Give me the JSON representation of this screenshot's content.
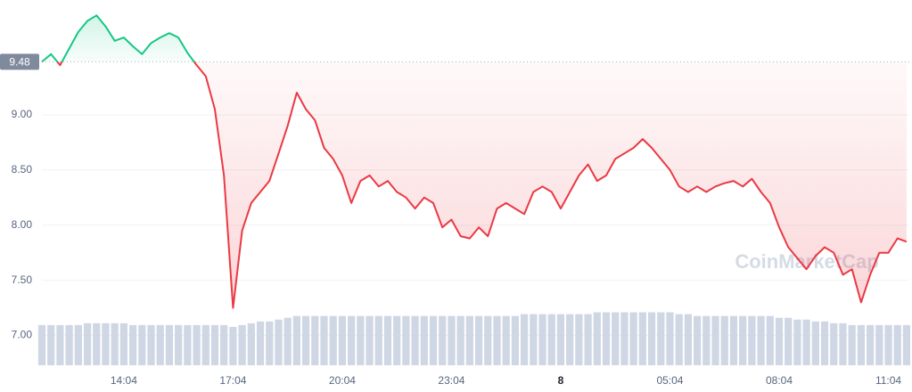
{
  "chart_data": {
    "type": "line",
    "categories": [
      null,
      null,
      null,
      null,
      null,
      null,
      null,
      null,
      null,
      "14:04",
      null,
      null,
      null,
      null,
      null,
      null,
      null,
      null,
      null,
      null,
      null,
      "17:04",
      null,
      null,
      null,
      null,
      null,
      null,
      null,
      null,
      null,
      null,
      null,
      "20:04",
      null,
      null,
      null,
      null,
      null,
      null,
      null,
      null,
      null,
      null,
      null,
      "23:04",
      null,
      null,
      null,
      null,
      null,
      null,
      null,
      null,
      null,
      null,
      null,
      "8",
      null,
      null,
      null,
      null,
      null,
      null,
      null,
      null,
      null,
      null,
      null,
      "05:04",
      null,
      null,
      null,
      null,
      null,
      null,
      null,
      null,
      null,
      null,
      null,
      "08:04",
      null,
      null,
      null,
      null,
      null,
      null,
      null,
      null,
      null,
      null,
      null,
      "11:04",
      null,
      null
    ],
    "series": [
      {
        "name": "Price",
        "color_up": "#16c784",
        "color_down": "#ea3943",
        "values": [
          9.48,
          9.55,
          9.45,
          9.6,
          9.75,
          9.85,
          9.9,
          9.8,
          9.67,
          9.7,
          9.62,
          9.55,
          9.65,
          9.7,
          9.74,
          9.7,
          9.56,
          9.45,
          9.35,
          9.05,
          8.45,
          7.25,
          7.95,
          8.2,
          8.3,
          8.4,
          8.65,
          8.9,
          9.2,
          9.05,
          8.95,
          8.7,
          8.6,
          8.45,
          8.2,
          8.4,
          8.45,
          8.35,
          8.4,
          8.3,
          8.25,
          8.15,
          8.25,
          8.2,
          7.98,
          8.05,
          7.9,
          7.88,
          7.98,
          7.9,
          8.15,
          8.2,
          8.15,
          8.1,
          8.3,
          8.35,
          8.3,
          8.15,
          8.3,
          8.45,
          8.55,
          8.4,
          8.45,
          8.6,
          8.65,
          8.7,
          8.78,
          8.7,
          8.6,
          8.5,
          8.35,
          8.3,
          8.35,
          8.3,
          8.35,
          8.38,
          8.4,
          8.35,
          8.42,
          8.3,
          8.2,
          7.98,
          7.8,
          7.7,
          7.6,
          7.72,
          7.8,
          7.75,
          7.55,
          7.6,
          7.3,
          7.55,
          7.75,
          7.75,
          7.88,
          7.85
        ]
      },
      {
        "name": "Volume",
        "axis": "y2",
        "color": "#cfd6e4",
        "values": [
          22,
          22,
          22,
          22,
          22,
          23,
          23,
          23,
          23,
          23,
          22,
          22,
          22,
          22,
          22,
          22,
          22,
          22,
          22,
          22,
          22,
          21,
          22,
          23,
          24,
          24,
          25,
          26,
          27,
          27,
          27,
          27,
          27,
          27,
          27,
          27,
          27,
          27,
          27,
          27,
          27,
          27,
          27,
          27,
          27,
          27,
          27,
          27,
          27,
          27,
          27,
          27,
          27,
          28,
          28,
          28,
          28,
          28,
          28,
          28,
          28,
          29,
          29,
          29,
          29,
          29,
          29,
          29,
          29,
          29,
          28,
          28,
          27,
          27,
          27,
          27,
          27,
          27,
          27,
          27,
          27,
          26,
          26,
          25,
          25,
          24,
          24,
          23,
          23,
          22,
          22,
          22,
          22,
          22,
          22,
          22
        ]
      }
    ],
    "baseline": 9.48,
    "ylim": [
      6.73,
      10.04
    ],
    "yticks": [
      {
        "value": 7,
        "label": "7.00"
      },
      {
        "value": 7.5,
        "label": "7.50"
      },
      {
        "value": 8,
        "label": "8.00"
      },
      {
        "value": 8.5,
        "label": "8.50"
      },
      {
        "value": 9,
        "label": "9.00"
      }
    ],
    "y2lim": [
      0,
      200
    ],
    "grid": true,
    "watermark": "CoinMarketCap"
  }
}
